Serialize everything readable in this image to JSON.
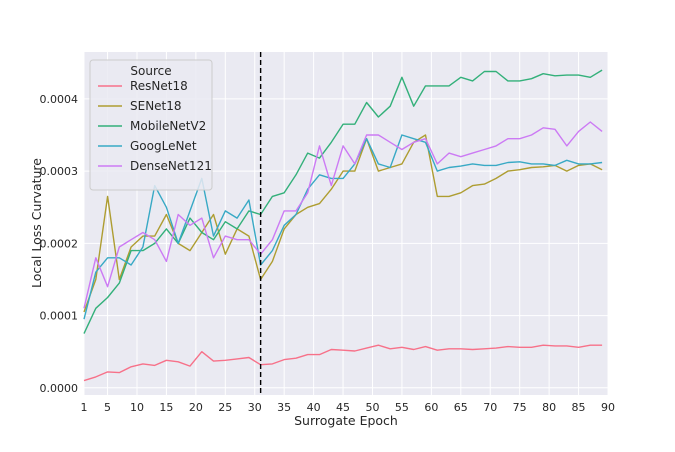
{
  "chart_data": {
    "type": "line",
    "xlabel": "Surrogate Epoch",
    "ylabel": "Local Loss Curvature",
    "xlim": [
      1,
      90
    ],
    "ylim": [
      -1e-05,
      0.000465
    ],
    "x_ticks": [
      1,
      5,
      10,
      15,
      20,
      25,
      30,
      35,
      40,
      45,
      50,
      55,
      60,
      65,
      70,
      75,
      80,
      85,
      90
    ],
    "y_ticks": [
      0,
      0.0001,
      0.0002,
      0.0003,
      0.0004
    ],
    "y_tick_labels": [
      "0.0000",
      "0.0001",
      "0.0002",
      "0.0003",
      "0.0004"
    ],
    "grid": true,
    "legend_title": "Source",
    "legend_position": "top-left",
    "vline": {
      "x": 31,
      "style": "dashed",
      "color": "#000000"
    },
    "x": [
      1,
      3,
      5,
      7,
      9,
      11,
      13,
      15,
      17,
      19,
      21,
      23,
      25,
      27,
      29,
      31,
      33,
      35,
      37,
      39,
      41,
      43,
      45,
      47,
      49,
      51,
      53,
      55,
      57,
      59,
      61,
      63,
      65,
      67,
      69,
      71,
      73,
      75,
      77,
      79,
      81,
      83,
      85,
      87,
      89
    ],
    "series": [
      {
        "name": "ResNet18",
        "color": "#f77189",
        "values": [
          1e-05,
          1.5e-05,
          2.2e-05,
          2.1e-05,
          2.9e-05,
          3.3e-05,
          3.1e-05,
          3.8e-05,
          3.6e-05,
          3e-05,
          5e-05,
          3.7e-05,
          3.8e-05,
          4e-05,
          4.2e-05,
          3.2e-05,
          3.3e-05,
          3.9e-05,
          4.1e-05,
          4.6e-05,
          4.6e-05,
          5.3e-05,
          5.2e-05,
          5.1e-05,
          5.5e-05,
          5.9e-05,
          5.4e-05,
          5.6e-05,
          5.3e-05,
          5.7e-05,
          5.2e-05,
          5.4e-05,
          5.4e-05,
          5.3e-05,
          5.4e-05,
          5.5e-05,
          5.7e-05,
          5.6e-05,
          5.6e-05,
          5.9e-05,
          5.8e-05,
          5.8e-05,
          5.6e-05,
          5.9e-05,
          5.9e-05
        ]
      },
      {
        "name": "SENet18",
        "color": "#ae9d31",
        "values": [
          0.000105,
          0.00015,
          0.000265,
          0.00015,
          0.000195,
          0.00021,
          0.00021,
          0.00024,
          0.0002,
          0.00019,
          0.000215,
          0.00024,
          0.000185,
          0.00022,
          0.00021,
          0.00015,
          0.000175,
          0.00022,
          0.00024,
          0.00025,
          0.000255,
          0.000275,
          0.0003,
          0.0003,
          0.000345,
          0.0003,
          0.000305,
          0.00031,
          0.00034,
          0.00035,
          0.000265,
          0.000265,
          0.00027,
          0.00028,
          0.000282,
          0.00029,
          0.0003,
          0.000302,
          0.000305,
          0.000306,
          0.000308,
          0.0003,
          0.000308,
          0.00031,
          0.000302
        ]
      },
      {
        "name": "MobileNetV2",
        "color": "#33b07a",
        "values": [
          7.5e-05,
          0.00011,
          0.000125,
          0.000145,
          0.00019,
          0.00019,
          0.0002,
          0.00022,
          0.0002,
          0.000235,
          0.000215,
          0.000205,
          0.00023,
          0.00022,
          0.000245,
          0.00024,
          0.000265,
          0.00027,
          0.000295,
          0.000325,
          0.000318,
          0.00034,
          0.000365,
          0.000365,
          0.000395,
          0.000375,
          0.00039,
          0.00043,
          0.00039,
          0.000418,
          0.000418,
          0.000418,
          0.00043,
          0.000425,
          0.000438,
          0.000438,
          0.000425,
          0.000425,
          0.000428,
          0.000435,
          0.000432,
          0.000433,
          0.000433,
          0.00043,
          0.00044
        ]
      },
      {
        "name": "GoogLeNet",
        "color": "#38a9c5",
        "values": [
          9.5e-05,
          0.00016,
          0.00018,
          0.00018,
          0.00017,
          0.000195,
          0.00028,
          0.00025,
          0.0002,
          0.000245,
          0.00029,
          0.00021,
          0.000245,
          0.000235,
          0.00026,
          0.00017,
          0.00019,
          0.000225,
          0.00024,
          0.000275,
          0.000295,
          0.00029,
          0.00029,
          0.00031,
          0.000345,
          0.00031,
          0.000305,
          0.00035,
          0.000345,
          0.00034,
          0.0003,
          0.000305,
          0.000307,
          0.00031,
          0.000308,
          0.000308,
          0.000312,
          0.000313,
          0.00031,
          0.00031,
          0.000308,
          0.000315,
          0.00031,
          0.00031,
          0.000312
        ]
      },
      {
        "name": "DenseNet121",
        "color": "#cc7af4",
        "values": [
          0.00011,
          0.00018,
          0.00014,
          0.000195,
          0.000205,
          0.000215,
          0.000205,
          0.000175,
          0.00024,
          0.000225,
          0.000235,
          0.00018,
          0.00021,
          0.000205,
          0.000205,
          0.000185,
          0.000205,
          0.000245,
          0.000245,
          0.00027,
          0.000335,
          0.00028,
          0.000335,
          0.00031,
          0.00035,
          0.00035,
          0.00034,
          0.00033,
          0.00034,
          0.000345,
          0.00031,
          0.000325,
          0.00032,
          0.000325,
          0.00033,
          0.000335,
          0.000345,
          0.000345,
          0.00035,
          0.00036,
          0.000358,
          0.000335,
          0.000355,
          0.000368,
          0.000355
        ]
      }
    ]
  }
}
